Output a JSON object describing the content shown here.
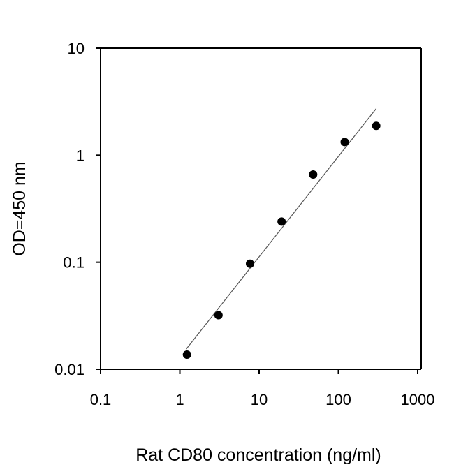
{
  "chart_data": {
    "type": "scatter",
    "title": "",
    "xlabel": "Rat CD80 concentration (ng/ml)",
    "ylabel": "OD=450 nm",
    "xscale": "log",
    "yscale": "log",
    "xlim": [
      0.1,
      1000
    ],
    "ylim": [
      0.01,
      10
    ],
    "xticks": [
      0.1,
      1,
      10,
      100,
      1000
    ],
    "xtick_labels": [
      "0.1",
      "1",
      "10",
      "100",
      "1000"
    ],
    "yticks": [
      0.01,
      0.1,
      1,
      10
    ],
    "ytick_labels": [
      "0.01",
      "0.1",
      "1",
      "10"
    ],
    "grid": false,
    "series": [
      {
        "x": [
          1.23,
          3.07,
          7.68,
          19.2,
          48,
          120,
          300
        ],
        "y": [
          0.0137,
          0.032,
          0.097,
          0.24,
          0.66,
          1.33,
          1.88
        ],
        "marker": "filled-circle",
        "color": "#000000"
      }
    ],
    "fit_line": {
      "x": [
        1.2,
        300
      ],
      "y": [
        0.0154,
        2.73
      ],
      "color": "#555555"
    }
  }
}
